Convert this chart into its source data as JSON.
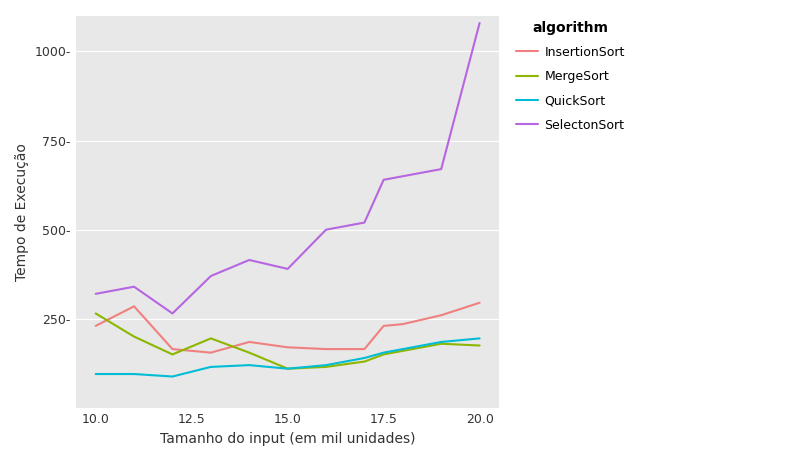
{
  "title": "",
  "xlabel": "Tamanho do input (em mil unidades)",
  "ylabel": "Tempo de Execução",
  "legend_title": "algorithm",
  "panel_background": "#e8e8e8",
  "figure_background": "#ffffff",
  "legend_background": "#ffffff",
  "series": {
    "InsertionSort": {
      "color": "#f08080",
      "x": [
        10.0,
        11.0,
        12.0,
        13.0,
        14.0,
        15.0,
        16.0,
        17.0,
        17.5,
        18.0,
        19.0,
        20.0
      ],
      "y": [
        230,
        285,
        165,
        155,
        185,
        170,
        165,
        165,
        230,
        235,
        260,
        295
      ]
    },
    "MergeSort": {
      "color": "#8db600",
      "x": [
        10.0,
        11.0,
        12.0,
        13.0,
        14.0,
        15.0,
        16.0,
        17.0,
        17.5,
        18.0,
        19.0,
        20.0
      ],
      "y": [
        265,
        200,
        150,
        195,
        155,
        110,
        115,
        130,
        150,
        160,
        180,
        175
      ]
    },
    "QuickSort": {
      "color": "#00bcd4",
      "x": [
        10.0,
        11.0,
        12.0,
        13.0,
        14.0,
        15.0,
        16.0,
        17.0,
        17.5,
        18.0,
        19.0,
        20.0
      ],
      "y": [
        95,
        95,
        88,
        115,
        120,
        110,
        120,
        140,
        155,
        165,
        185,
        195
      ]
    },
    "SelectonSort": {
      "color": "#b566e0",
      "x": [
        10.0,
        11.0,
        12.0,
        13.0,
        14.0,
        15.0,
        16.0,
        17.0,
        17.5,
        18.0,
        19.0,
        20.0
      ],
      "y": [
        320,
        340,
        265,
        370,
        415,
        390,
        500,
        520,
        640,
        650,
        670,
        1080
      ]
    }
  },
  "xlim": [
    9.5,
    20.5
  ],
  "ylim": [
    0,
    1100
  ],
  "xticks": [
    10.0,
    12.5,
    15.0,
    17.5,
    20.0
  ],
  "yticks": [
    250,
    500,
    750,
    1000
  ],
  "ytick_labels": [
    "250-",
    "500-",
    "750-",
    "1000-"
  ],
  "xtick_labels": [
    "10.0",
    "12.5",
    "15.0",
    "17.5",
    "20.0"
  ],
  "grid_color": "#ffffff",
  "xlabel_fontsize": 10,
  "ylabel_fontsize": 10,
  "tick_fontsize": 9,
  "legend_fontsize": 9,
  "legend_title_fontsize": 10,
  "line_width": 1.5
}
